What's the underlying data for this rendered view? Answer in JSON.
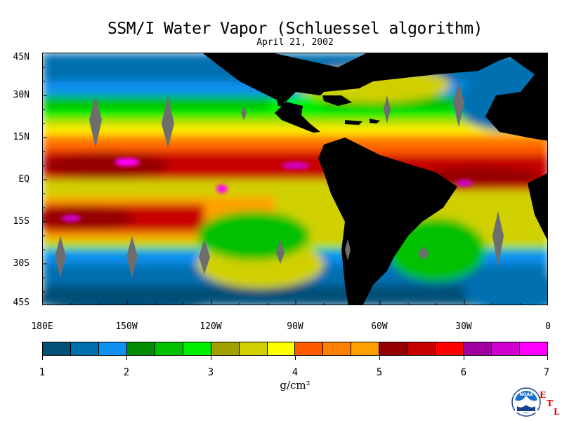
{
  "title": "SSM/I Water Vapor (Schluessel algorithm)",
  "subtitle": "April 21, 2002",
  "latitude_labels": [
    "45N",
    "30N",
    "15N",
    "EQ",
    "15S",
    "30S",
    "45S"
  ],
  "longitude_labels": [
    "180E",
    "150W",
    "120W",
    "90W",
    "60W",
    "30W",
    "0"
  ],
  "colorbar": {
    "tick_labels": [
      "1",
      "2",
      "3",
      "4",
      "5",
      "6",
      "7"
    ],
    "unit": "g/cm²",
    "colors": [
      "#005078",
      "#0070b0",
      "#1090f0",
      "#008c00",
      "#00c000",
      "#00f000",
      "#a0a000",
      "#d0d000",
      "#ffff00",
      "#ff5a00",
      "#ff8000",
      "#ffa000",
      "#960000",
      "#c80000",
      "#ff0000",
      "#a000a0",
      "#d000d0",
      "#ff00ff"
    ]
  },
  "logo": {
    "text": "NOAA",
    "etl_letters": [
      "E",
      "T",
      "L"
    ]
  },
  "land_color": "#000000",
  "missing_data_color": "#6e6e6e"
}
